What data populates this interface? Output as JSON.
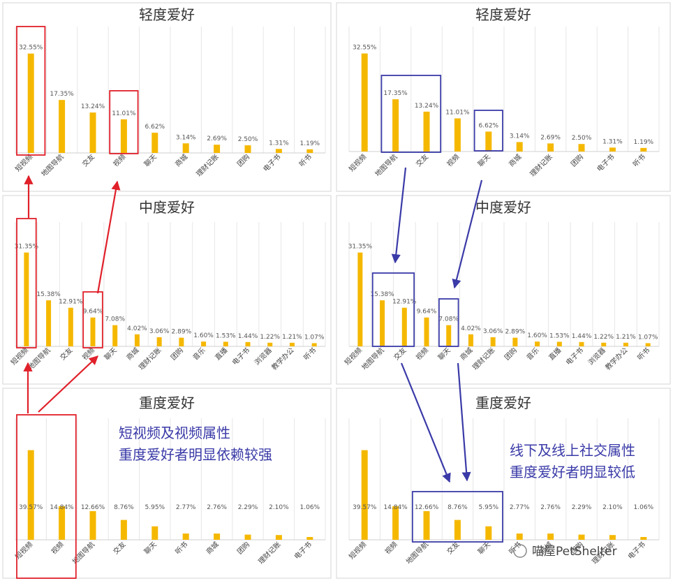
{
  "chart_data": [
    {
      "type": "bar",
      "title": "轻度爱好",
      "categories": [
        "短视频",
        "地图导航",
        "交友",
        "视频",
        "聊天",
        "商城",
        "理财记账",
        "团购",
        "电子书",
        "听书"
      ],
      "values": [
        32.55,
        17.35,
        13.24,
        11.01,
        6.62,
        3.14,
        2.69,
        2.5,
        1.31,
        1.19
      ],
      "value_labels": [
        "32.55%",
        "17.35%",
        "13.24%",
        "11.01%",
        "6.62%",
        "3.14%",
        "2.69%",
        "2.50%",
        "1.31%",
        "1.19%"
      ],
      "ylim": [
        0,
        35
      ],
      "grid": "vertical",
      "legend": "none"
    },
    {
      "type": "bar",
      "title": "中度爱好",
      "categories": [
        "短视频",
        "地图导航",
        "交友",
        "视频",
        "聊天",
        "商城",
        "理财记账",
        "团购",
        "音乐",
        "直播",
        "电子书",
        "浏览器",
        "教学办公",
        "听书"
      ],
      "values": [
        31.35,
        15.38,
        12.91,
        9.64,
        7.08,
        4.02,
        3.06,
        2.89,
        1.6,
        1.53,
        1.44,
        1.22,
        1.21,
        1.07
      ],
      "value_labels": [
        "31.35%",
        "15.38%",
        "12.91%",
        "9.64%",
        "7.08%",
        "4.02%",
        "3.06%",
        "2.89%",
        "1.60%",
        "1.53%",
        "1.44%",
        "1.22%",
        "1.21%",
        "1.07%"
      ],
      "ylim": [
        0,
        35
      ],
      "grid": "vertical",
      "legend": "none"
    },
    {
      "type": "bar",
      "title": "重度爱好",
      "categories": [
        "短视频",
        "视频",
        "地图导航",
        "交友",
        "聊天",
        "听书",
        "商城",
        "团购",
        "理财记账",
        "电子书"
      ],
      "values": [
        39.57,
        14.84,
        12.66,
        8.76,
        5.95,
        2.77,
        2.76,
        2.29,
        2.1,
        1.06
      ],
      "value_labels": [
        "39.57%",
        "14.84%",
        "12.66%",
        "8.76%",
        "5.95%",
        "2.77%",
        "2.76%",
        "2.29%",
        "2.10%",
        "1.06%"
      ],
      "ylim": [
        0,
        45
      ],
      "grid": "vertical",
      "legend": "none"
    }
  ],
  "annotations": {
    "left": [
      "短视频及视频属性",
      "重度爱好者明显依赖较强"
    ],
    "right": [
      "线下及线上社交属性",
      "重度爱好者明显较低"
    ]
  },
  "watermark": "喵屋PetShelter",
  "colors": {
    "bar": "#f5b800",
    "red_highlight": "#e0202a",
    "blue_highlight": "#3a3aa8",
    "grid": "#e6e6e6",
    "panel_border": "#d4d4d4"
  }
}
